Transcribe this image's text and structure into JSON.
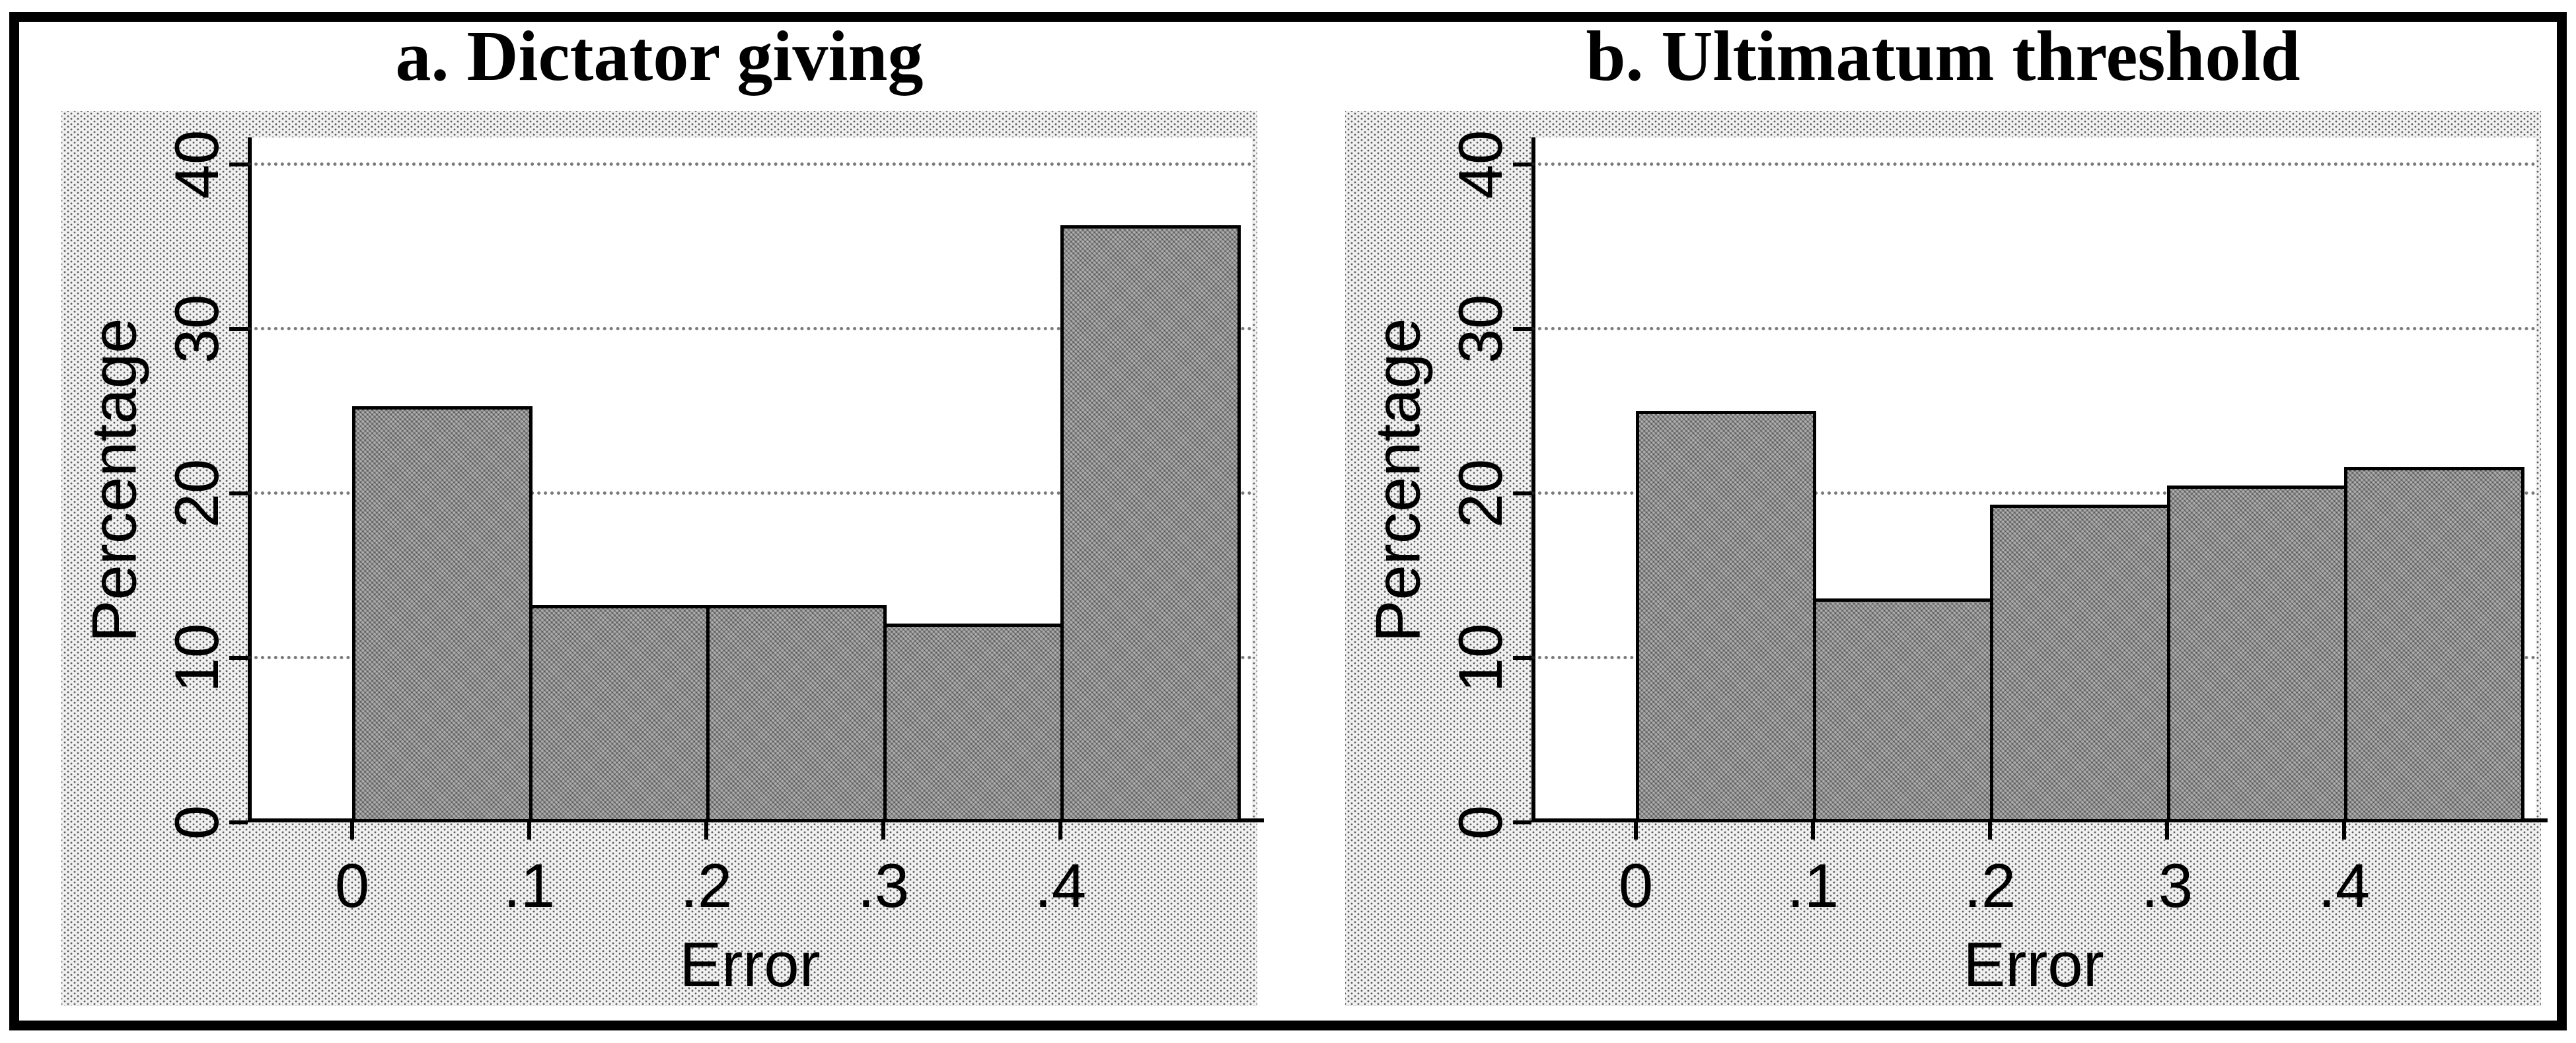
{
  "figure": {
    "background": "#ffffff",
    "frame_color": "#000000"
  },
  "colors": {
    "bar_fill": "#969696",
    "bar_border": "#000000",
    "panel_background": "#ededed",
    "plot_background": "#ffffff",
    "gridline": "#323232",
    "axis": "#000000",
    "text": "#000000"
  },
  "chart_data": [
    {
      "panel": "a",
      "type": "bar",
      "title": "a. Dictator giving",
      "xlabel": "Error",
      "ylabel": "Percentage",
      "bin_width": 0.1,
      "bin_starts": [
        0,
        0.1,
        0.2,
        0.3,
        0.4
      ],
      "values": [
        25.3,
        13.2,
        13.2,
        12.1,
        36.3
      ],
      "xtick_values": [
        0,
        0.1,
        0.2,
        0.3,
        0.4
      ],
      "xtick_labels": [
        "0",
        ".1",
        ".2",
        ".3",
        ".4"
      ],
      "ytick_values": [
        0,
        10,
        20,
        30,
        40
      ],
      "ytick_labels": [
        "0",
        "10",
        "20",
        "30",
        "40"
      ],
      "ylim": [
        0,
        41.6
      ],
      "grid": "horizontal-dotted",
      "legend": "none"
    },
    {
      "panel": "b",
      "type": "bar",
      "title": "b. Ultimatum threshold",
      "xlabel": "Error",
      "ylabel": "Percentage",
      "bin_width": 0.1,
      "bin_starts": [
        0,
        0.1,
        0.2,
        0.3,
        0.4
      ],
      "values": [
        25.0,
        13.6,
        19.3,
        20.5,
        21.6
      ],
      "xtick_values": [
        0,
        0.1,
        0.2,
        0.3,
        0.4
      ],
      "xtick_labels": [
        "0",
        ".1",
        ".2",
        ".3",
        ".4"
      ],
      "ytick_values": [
        0,
        10,
        20,
        30,
        40
      ],
      "ytick_labels": [
        "0",
        "10",
        "20",
        "30",
        "40"
      ],
      "ylim": [
        0,
        41.6
      ],
      "grid": "horizontal-dotted",
      "legend": "none"
    }
  ]
}
